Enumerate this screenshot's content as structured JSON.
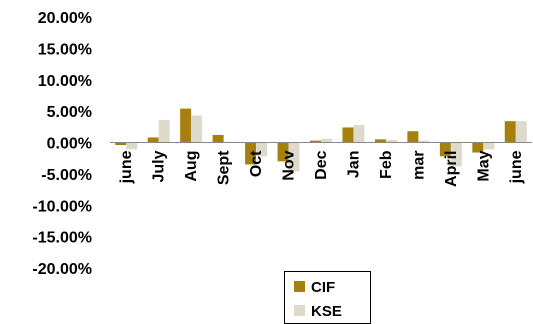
{
  "chart_data": {
    "type": "bar",
    "categories": [
      "june",
      "July",
      "Aug",
      "Sept",
      "Oct",
      "Nov",
      "Dec",
      "Jan",
      "Feb",
      "mar",
      "April",
      "May",
      "june"
    ],
    "series": [
      {
        "name": "CIF",
        "color": "#a6800f",
        "values": [
          -0.4,
          0.8,
          5.4,
          1.2,
          -3.5,
          -3.0,
          0.3,
          2.4,
          0.5,
          1.8,
          -2.2,
          -1.6,
          3.4
        ]
      },
      {
        "name": "KSE",
        "color": "#dddacb",
        "values": [
          -1.1,
          3.6,
          4.3,
          0.1,
          -2.2,
          -4.6,
          0.6,
          2.8,
          0.4,
          0.3,
          -3.8,
          -1.1,
          3.4
        ]
      }
    ],
    "ylim": [
      -20,
      20
    ],
    "yticks": [
      "20.00%",
      "15.00%",
      "10.00%",
      "5.00%",
      "0.00%",
      "-5.00%",
      "-10.00%",
      "-15.00%",
      "-20.00%"
    ],
    "ytick_values": [
      20,
      15,
      10,
      5,
      0,
      -5,
      -10,
      -15,
      -20
    ],
    "grid": false,
    "legend_position": "bottom"
  }
}
